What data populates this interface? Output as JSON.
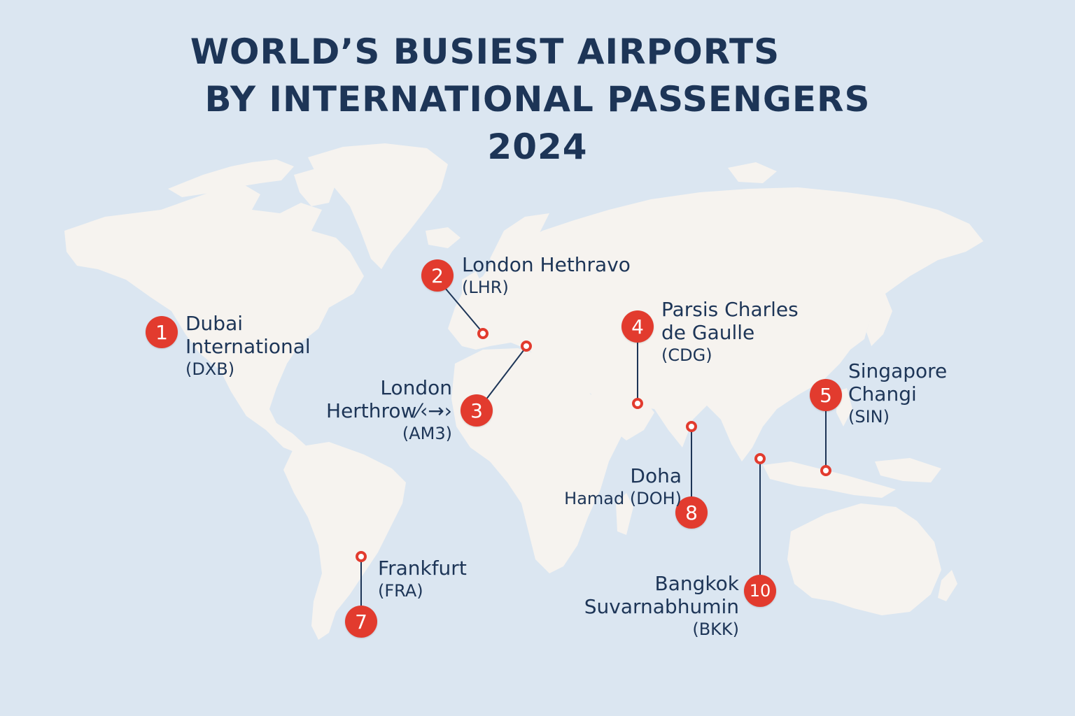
{
  "title": {
    "line1": "WORLD’S BUSIEST AIRPORTS",
    "line2": "BY INTERNATIONAL PASSENGERS",
    "line3": "2024"
  },
  "colors": {
    "ocean": "#dbe6f1",
    "land": "#f6f3ef",
    "marker": "#e23b2e",
    "text": "#1d3557"
  },
  "airports": [
    {
      "rank": "1",
      "name_lines": [
        "Dubai",
        "International"
      ],
      "code": "(DXB)"
    },
    {
      "rank": "2",
      "name_lines": [
        "London Hethravo"
      ],
      "code": "(LHR)"
    },
    {
      "rank": "3",
      "name_lines": [
        "London",
        "Herthrow⁄‹→›"
      ],
      "code": "(AM3)"
    },
    {
      "rank": "4",
      "name_lines": [
        "Parsis Charles",
        "de Gaulle"
      ],
      "code": "(CDG)"
    },
    {
      "rank": "5",
      "name_lines": [
        "Singapore",
        "Changi"
      ],
      "code": "(SIN)"
    },
    {
      "rank": "7",
      "name_lines": [
        "Frankfurt"
      ],
      "code": "(FRA)"
    },
    {
      "rank": "8",
      "name_lines": [
        "Doha"
      ],
      "code_line": "Hamad (DOH)"
    },
    {
      "rank": "10",
      "name_lines": [
        "Bangkok",
        "Suvarnabhumin"
      ],
      "code": "(BKK)"
    }
  ]
}
